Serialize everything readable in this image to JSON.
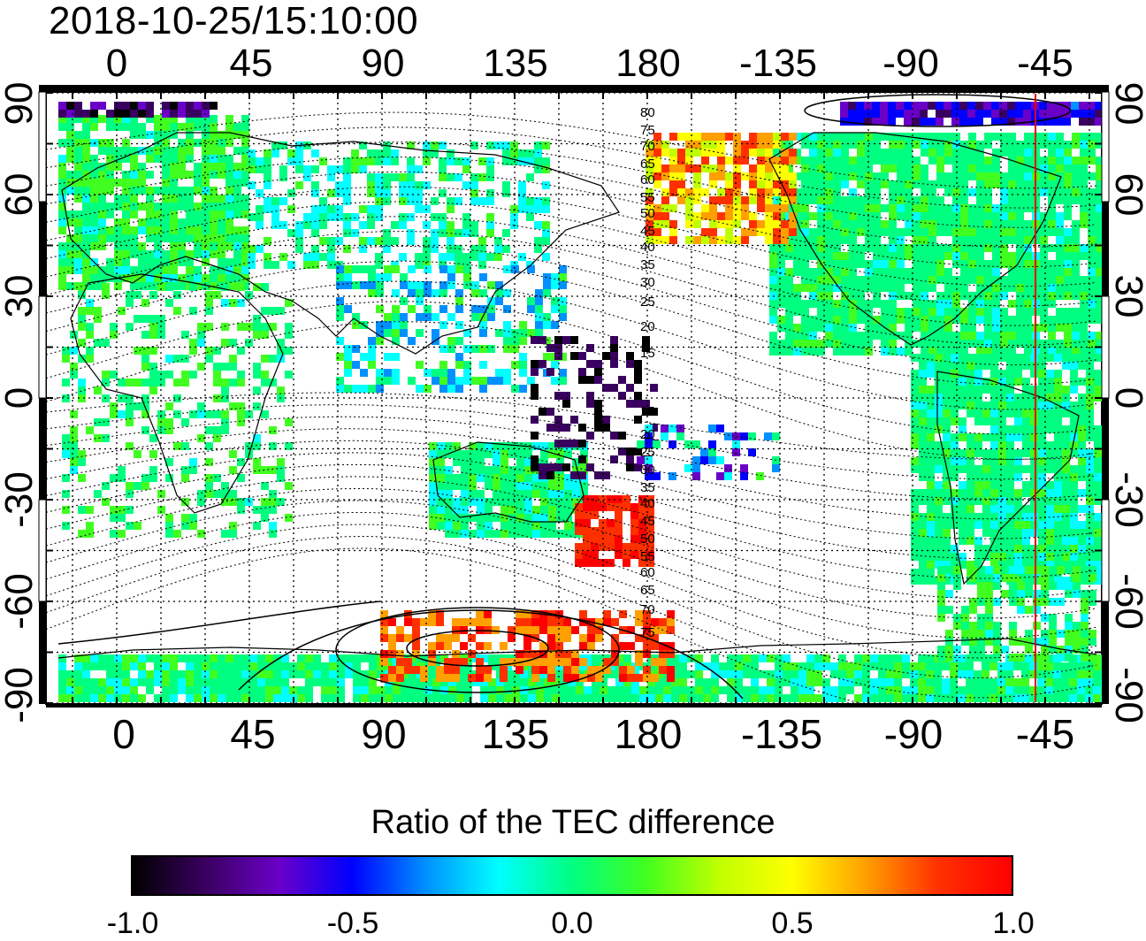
{
  "timestamp": "2018-10-25/15:10:00",
  "map": {
    "top_lon_ticks": [
      "0",
      "45",
      "90",
      "135",
      "180",
      "-135",
      "-90",
      "-45"
    ],
    "bottom_lon_ticks": [
      "0",
      "45",
      "90",
      "135",
      "180",
      "-135",
      "-90",
      "-45"
    ],
    "left_lat_ticks": [
      "90",
      "60",
      "30",
      "0",
      "-30",
      "-60",
      "-90"
    ],
    "right_lat_ticks": [
      "90",
      "60",
      "30",
      "0",
      "-30",
      "-60",
      "-90"
    ],
    "contour_labels_north": [
      "80",
      "75",
      "70",
      "65",
      "60",
      "55",
      "50",
      "45",
      "40",
      "35",
      "30",
      "25",
      "20",
      "15"
    ],
    "contour_labels_south": [
      "15",
      "20",
      "25",
      "30",
      "35",
      "40",
      "45",
      "50",
      "55",
      "60",
      "65",
      "70",
      "75"
    ],
    "marker_line_color": "#e00000"
  },
  "colorbar": {
    "title": "Ratio of the TEC difference",
    "tick_labels": [
      "-1.0",
      "-0.5",
      "0.0",
      "0.5",
      "1.0"
    ],
    "min": -1.0,
    "max": 1.0,
    "colors": [
      "#000000",
      "#3a0060",
      "#6a00c8",
      "#0000ff",
      "#0090ff",
      "#00ffff",
      "#00ff80",
      "#40ff20",
      "#c0ff00",
      "#ffff00",
      "#ffa000",
      "#ff3000",
      "#ff0000"
    ]
  }
}
